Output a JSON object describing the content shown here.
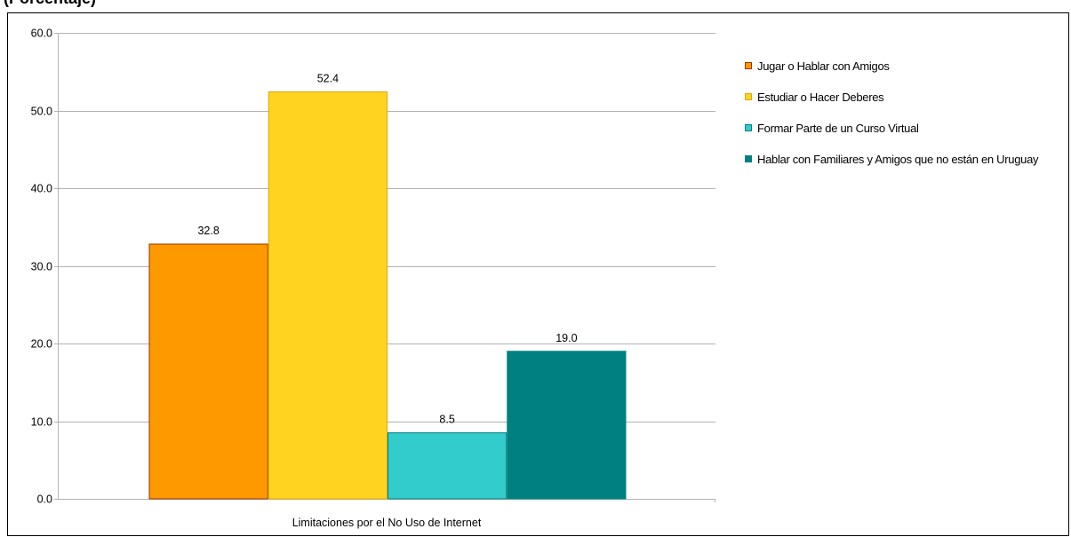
{
  "header": {
    "clipped_title": "(Porcentaje)"
  },
  "chart_data": {
    "type": "bar",
    "title": "",
    "xlabel": "Limitaciones por el No Uso de Internet",
    "ylabel": "",
    "ylim": [
      0,
      60
    ],
    "yticks": [
      0,
      10,
      20,
      30,
      40,
      50,
      60
    ],
    "ytick_labels": [
      "0.0",
      "10.0",
      "20.0",
      "30.0",
      "40.0",
      "50.0",
      "60.0"
    ],
    "grid": true,
    "legend_position": "right",
    "categories": [
      "Limitaciones por el No Uso de Internet"
    ],
    "series": [
      {
        "name": "Jugar o Hablar con Amigos",
        "values": [
          32.8
        ],
        "label": "32.8",
        "color": "#FF9900",
        "border": "#993300"
      },
      {
        "name": "Estudiar o Hacer Deberes",
        "values": [
          52.4
        ],
        "label": "52.4",
        "color": "#FFD320",
        "border": "#E0A800"
      },
      {
        "name": "Formar Parte de un Curso Virtual",
        "values": [
          8.5
        ],
        "label": "8.5",
        "color": "#33CCCC",
        "border": "#008080"
      },
      {
        "name": "Hablar con Familiares y Amigos que no están en Uruguay",
        "values": [
          19.0
        ],
        "label": "19.0",
        "color": "#008080",
        "border": "#008080"
      }
    ]
  }
}
